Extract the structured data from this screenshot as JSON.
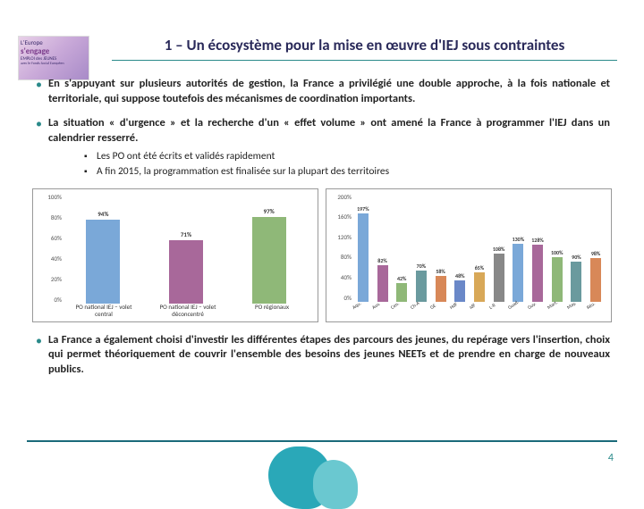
{
  "logo": {
    "line1": "L'Europe",
    "line2": "s'engage",
    "line3": "EMPLOI des JEUNES",
    "line4": "avec le Fonds Social Européen"
  },
  "title": "1 – Un écosystème pour la mise en œuvre d'IEJ sous contraintes",
  "bullets": [
    "En s'appuyant sur plusieurs autorités de gestion, la France a privilégié une double approche, à la fois nationale et territoriale, qui suppose toutefois des mécanismes de coordination importants.",
    "La situation « d'urgence » et la recherche d'un « effet volume » ont amené la France à programmer l'IEJ dans un calendrier resserré."
  ],
  "sub_bullets": [
    "Les PO ont été écrits et validés rapidement",
    "A fin 2015, la programmation est finalisée sur la plupart des territoires"
  ],
  "bullet_after": "La France a également choisi d'investir les différentes étapes des parcours des jeunes, du repérage vers l'insertion, choix qui permet théoriquement de couvrir l'ensemble des besoins des jeunes NEETs et de prendre en charge de nouveaux publics.",
  "chart1": {
    "ylabels": [
      "100%",
      "80%",
      "60%",
      "40%",
      "20%",
      "0%"
    ],
    "categories": [
      "PO national IEJ – volet central",
      "PO national IEJ – volet déconcentré",
      "PO régionaux"
    ],
    "values": [
      94,
      71,
      97
    ],
    "value_labels": [
      "94%",
      "71%",
      "97%"
    ],
    "colors": [
      "#7aa8d8",
      "#a8689a",
      "#8fb878"
    ],
    "ylim": 100
  },
  "chart2": {
    "ylabels": [
      "200%",
      "160%",
      "120%",
      "80%",
      "40%",
      "0%"
    ],
    "categories": [
      "Aqu.",
      "Auv.",
      "Cen.",
      "Ch-A",
      "GE",
      "HdF",
      "IdF",
      "L-R",
      "Guad.",
      "Guy.",
      "Mart.",
      "May.",
      "Réu."
    ],
    "values": [
      197,
      82,
      42,
      70,
      58,
      48,
      65,
      108,
      130,
      128,
      100,
      90,
      98
    ],
    "value_labels": [
      "197%",
      "82%",
      "42%",
      "70%",
      "58%",
      "48%",
      "65%",
      "108%",
      "130%",
      "128%",
      "100%",
      "90%",
      "98%"
    ],
    "colors": [
      "#7aa8d8",
      "#a8689a",
      "#8fb878",
      "#6a9a9e",
      "#d88858",
      "#6a88c8",
      "#d8a858",
      "#888888",
      "#7aa8d8",
      "#a8689a",
      "#8fb878",
      "#6a9a9e",
      "#d88858"
    ],
    "ylim": 200
  },
  "page_number": "4"
}
